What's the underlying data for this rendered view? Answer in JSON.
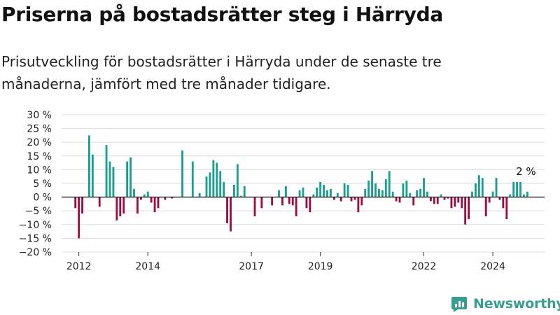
{
  "header": {
    "title": "Priserna på bostadsrätter steg i Härryda",
    "subtitle": "Prisutveckling för bostadsrätter i Härryda under de senaste tre månaderna, jämfört med tre månader tidigare."
  },
  "brand": {
    "name": "Newsworthy"
  },
  "colors": {
    "positive": "#1a9e92",
    "negative": "#9b0d45",
    "zero_line": "#222222",
    "grid": "#dddddd",
    "brand": "#3a9e8c"
  },
  "chart_data": {
    "type": "bar",
    "title": "Priserna på bostadsrätter steg i Härryda",
    "subtitle": "Prisutveckling för bostadsrätter i Härryda under de senaste tre månaderna, jämfört med tre månader tidigare.",
    "xlabel": "",
    "ylabel": "",
    "ylim": [
      -20,
      30
    ],
    "y_ticks": [
      30,
      25,
      20,
      15,
      10,
      5,
      0,
      -5,
      -10,
      -15,
      -20
    ],
    "y_tick_labels": [
      "30 %",
      "25 %",
      "20 %",
      "15 %",
      "10 %",
      "5 %",
      "0 %",
      "−5 %",
      "−10 %",
      "−15 %",
      "−20 %"
    ],
    "x_ticks": [
      2012,
      2014,
      2017,
      2019,
      2022,
      2024
    ],
    "x_tick_labels": [
      "2012",
      "2014",
      "2017",
      "2019",
      "2022",
      "2024"
    ],
    "x_range": [
      2011.5,
      2025.5
    ],
    "grid": true,
    "bar_width_years": 0.058,
    "annotation": {
      "text": "2 %",
      "x": 2025.0,
      "y": 2
    },
    "series": [
      {
        "x": [
          2011.9,
          2012.0,
          2012.1,
          2012.3,
          2012.4,
          2012.6,
          2012.8,
          2012.9,
          2013.0,
          2013.1,
          2013.2,
          2013.3,
          2013.4,
          2013.5,
          2013.6,
          2013.7,
          2013.8,
          2013.9,
          2014.0,
          2014.1,
          2014.2,
          2014.3,
          2014.4,
          2014.5,
          2014.7,
          2015.0,
          2015.3,
          2015.5,
          2015.7,
          2015.8,
          2015.9,
          2016.0,
          2016.1,
          2016.2,
          2016.3,
          2016.4,
          2016.5,
          2016.6,
          2016.7,
          2016.8,
          2017.1,
          2017.3,
          2017.6,
          2017.8,
          2017.9,
          2018.0,
          2018.1,
          2018.2,
          2018.3,
          2018.4,
          2018.5,
          2018.6,
          2018.7,
          2018.8,
          2018.9,
          2019.0,
          2019.1,
          2019.2,
          2019.3,
          2019.4,
          2019.5,
          2019.6,
          2019.7,
          2019.8,
          2019.9,
          2020.0,
          2020.1,
          2020.2,
          2020.3,
          2020.4,
          2020.5,
          2020.6,
          2020.7,
          2020.8,
          2020.9,
          2021.0,
          2021.1,
          2021.2,
          2021.3,
          2021.4,
          2021.5,
          2021.6,
          2021.7,
          2021.8,
          2021.9,
          2022.0,
          2022.1,
          2022.2,
          2022.3,
          2022.4,
          2022.5,
          2022.6,
          2022.7,
          2022.8,
          2022.9,
          2023.0,
          2023.1,
          2023.2,
          2023.3,
          2023.4,
          2023.5,
          2023.6,
          2023.7,
          2023.8,
          2023.9,
          2024.0,
          2024.1,
          2024.2,
          2024.3,
          2024.4,
          2024.5,
          2024.6,
          2024.7,
          2024.8,
          2024.9,
          2025.0
        ],
        "values": [
          -4,
          -15,
          -6,
          22.5,
          15.5,
          -3.5,
          19,
          13,
          11,
          -8.5,
          -7,
          -6,
          13,
          14.5,
          3,
          -6,
          -1,
          1,
          2,
          -2,
          -5.5,
          -4,
          0,
          -1,
          -0.5,
          17,
          13,
          1.5,
          7.5,
          9,
          13.5,
          12.5,
          9.5,
          5.5,
          -9.5,
          -12.5,
          4.5,
          12,
          0.5,
          4,
          -7,
          -4,
          -3,
          2.5,
          -3,
          4,
          -2.5,
          -3,
          -7,
          2.5,
          3.5,
          -4,
          -5.5,
          1,
          3.5,
          5.5,
          4.5,
          2.5,
          3,
          -1,
          1.5,
          -1.5,
          5,
          4.5,
          -1.5,
          -1,
          -5.5,
          -3,
          3,
          6,
          9.5,
          5,
          3,
          2.5,
          6.5,
          9.5,
          2,
          -1.5,
          -2,
          5,
          6,
          1.5,
          -3,
          2.5,
          3,
          7,
          2,
          -1.5,
          -2.5,
          -2.5,
          1,
          -1,
          -0.5,
          -4,
          -3.5,
          -2,
          -4,
          -10,
          -8,
          2,
          5,
          8,
          7,
          -7,
          -2,
          2,
          7,
          -1,
          -4,
          -8,
          1,
          5.5,
          5.5,
          5.5,
          1,
          2
        ]
      }
    ]
  }
}
